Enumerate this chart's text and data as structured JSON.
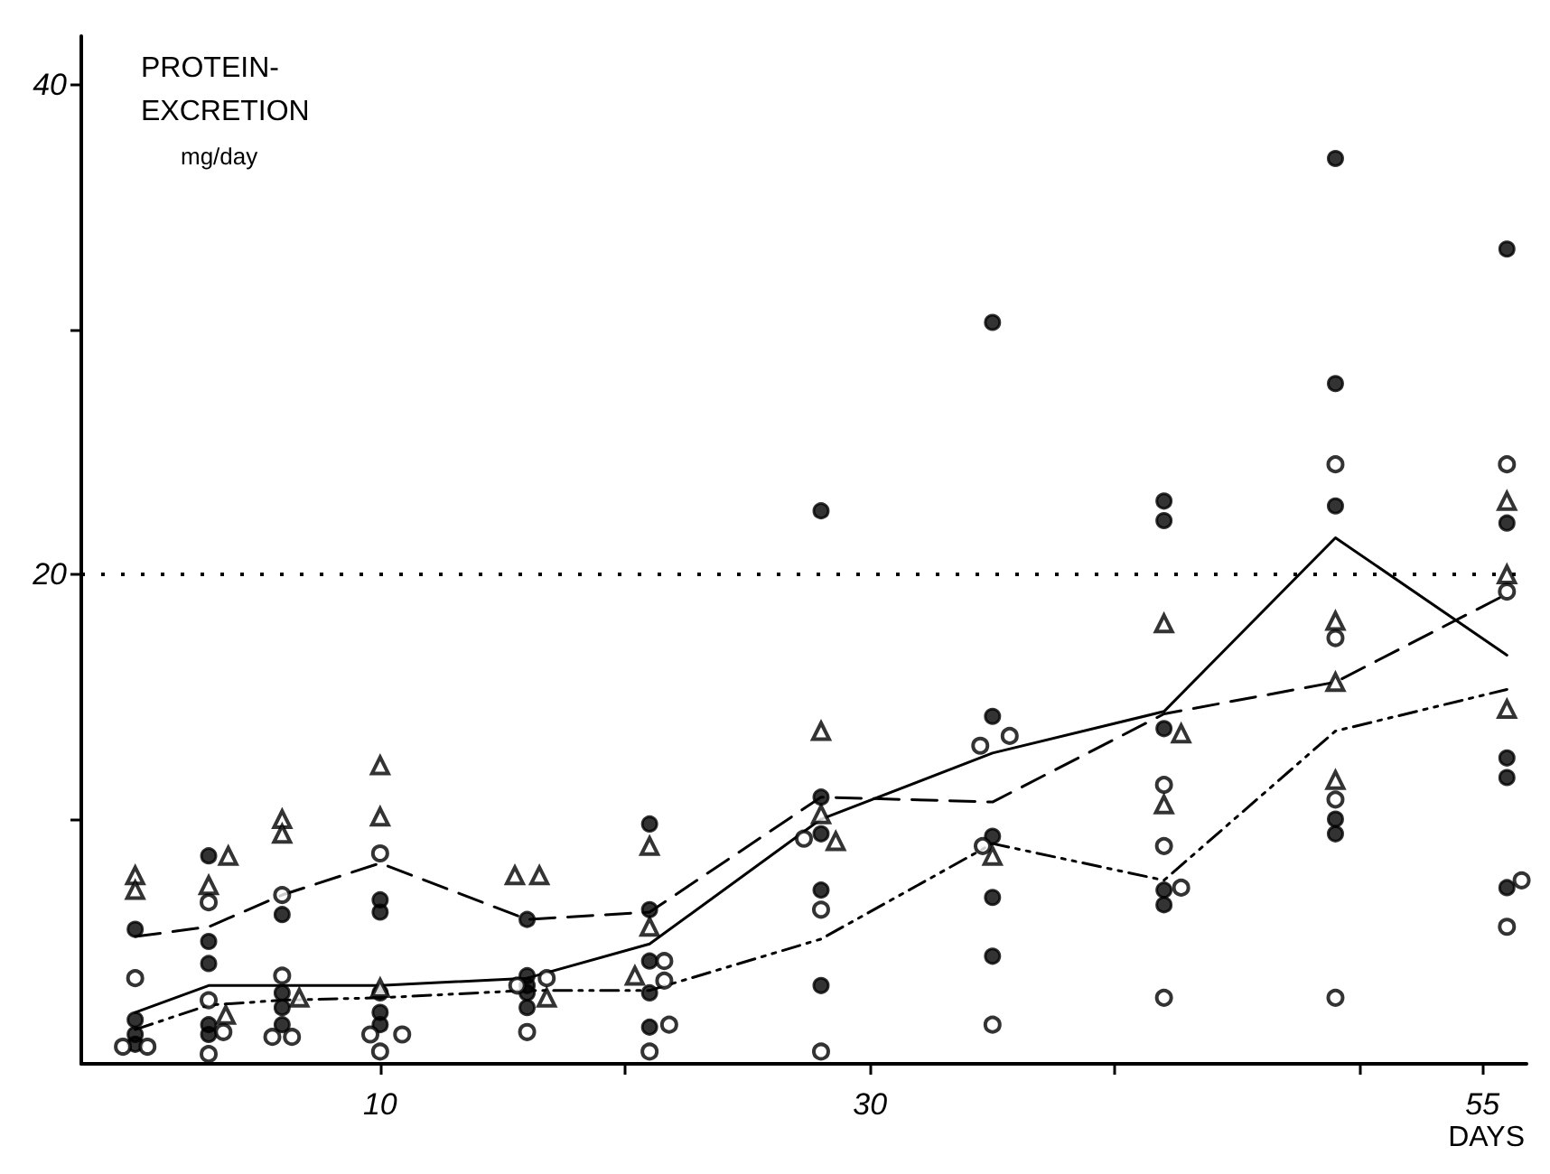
{
  "chart_data": {
    "type": "scatter",
    "ylabel": "PROTEIN-\nEXCRETION\nmg/day",
    "xlabel": "DAYS",
    "xlim": [
      -2.2,
      56.8
    ],
    "ylim": [
      0,
      42
    ],
    "xticks": [
      10,
      {
        "value": 20,
        "label": null
      },
      30,
      {
        "value": 40,
        "label": null
      },
      {
        "value": 50,
        "label": null
      },
      55
    ],
    "yticks": [
      {
        "value": 10,
        "label": null
      },
      20,
      {
        "value": 30,
        "label": null
      },
      40
    ],
    "grid": false,
    "ref_lines": [
      {
        "axis": "y",
        "value": 20,
        "line_style": "dotted",
        "color": "#000000"
      }
    ],
    "series": [
      {
        "marker": "circle",
        "color": "#000000",
        "x": [
          0,
          0,
          0,
          0,
          3,
          3,
          3,
          3,
          3,
          6,
          6,
          6,
          6,
          10,
          10,
          10,
          10,
          10,
          16,
          16,
          16,
          16,
          16,
          21,
          21,
          21,
          21,
          21,
          28,
          28,
          28,
          28,
          28,
          35,
          35,
          35,
          35,
          35,
          42,
          42,
          42,
          42,
          42,
          49,
          49,
          49,
          49,
          49,
          56,
          56,
          56,
          56,
          56
        ],
        "values": [
          5.5,
          1.8,
          1.2,
          0.8,
          8.5,
          5.0,
          4.1,
          1.6,
          1.2,
          6.1,
          2.9,
          2.3,
          1.6,
          6.7,
          6.2,
          2.9,
          2.1,
          1.6,
          5.9,
          3.6,
          3.2,
          2.9,
          2.3,
          9.8,
          6.3,
          4.2,
          2.9,
          1.5,
          22.6,
          10.9,
          9.4,
          7.1,
          3.2,
          30.3,
          14.2,
          9.3,
          6.8,
          4.4,
          23.0,
          22.2,
          13.7,
          7.1,
          6.5,
          37.0,
          27.8,
          22.8,
          10.0,
          9.4,
          33.3,
          22.1,
          12.5,
          11.7,
          7.2
        ]
      },
      {
        "marker": "open circle",
        "color": "#000000",
        "x": [
          0,
          -0.5,
          0.5,
          3,
          3,
          3.6,
          3,
          6,
          6,
          5.6,
          6.4,
          10,
          9.6,
          10.9,
          10,
          15.6,
          16.8,
          16,
          21.6,
          21.6,
          21.8,
          21,
          27.3,
          28,
          28,
          34.5,
          35.7,
          34.6,
          35,
          42,
          42,
          42.7,
          42,
          49,
          49,
          49,
          49,
          56,
          56,
          56.6,
          56
        ],
        "values": [
          3.5,
          0.7,
          0.7,
          6.6,
          2.6,
          1.3,
          0.4,
          6.9,
          3.6,
          1.1,
          1.1,
          8.6,
          1.2,
          1.2,
          0.5,
          3.2,
          3.5,
          1.3,
          4.2,
          3.4,
          1.6,
          0.5,
          9.2,
          6.3,
          0.5,
          13.0,
          13.4,
          8.9,
          1.6,
          11.4,
          8.9,
          7.2,
          2.7,
          24.5,
          17.4,
          10.8,
          2.7,
          24.5,
          19.3,
          7.5,
          5.6
        ]
      },
      {
        "marker": "triangle",
        "color": "#000000",
        "x": [
          0,
          0,
          3.8,
          3,
          3.7,
          6,
          6,
          6.7,
          10,
          10,
          10,
          15.5,
          16.5,
          16.8,
          21,
          21,
          20.4,
          28,
          28,
          28.6,
          35,
          42,
          42.7,
          42,
          49,
          49,
          49,
          56,
          56,
          56
        ],
        "values": [
          7.7,
          7.1,
          8.5,
          7.3,
          2.0,
          10.0,
          9.4,
          2.7,
          12.2,
          10.1,
          3.1,
          7.7,
          7.7,
          2.7,
          8.9,
          5.6,
          3.6,
          13.6,
          10.2,
          9.1,
          8.5,
          18.0,
          13.5,
          10.6,
          18.1,
          15.6,
          11.6,
          23.0,
          20.0,
          14.5
        ]
      },
      {
        "type": "line",
        "marker": "none",
        "line_style": "dashed",
        "color": "#000000",
        "x": [
          0,
          3,
          6,
          10,
          16,
          21,
          28,
          35,
          42,
          49,
          56
        ],
        "values": [
          5.2,
          5.6,
          6.9,
          8.2,
          5.9,
          6.2,
          10.9,
          10.7,
          14.3,
          15.6,
          19.2
        ]
      },
      {
        "type": "line",
        "marker": "none",
        "line_style": "solid",
        "color": "#000000",
        "x": [
          0,
          3,
          6,
          10,
          16,
          21,
          28,
          35,
          42,
          49,
          56
        ],
        "values": [
          2.1,
          3.2,
          3.2,
          3.2,
          3.5,
          4.9,
          10.0,
          12.7,
          14.4,
          21.5,
          16.7
        ]
      },
      {
        "type": "line",
        "marker": "none",
        "line_style": "dashdot",
        "color": "#000000",
        "x": [
          0,
          3,
          6,
          10,
          16,
          21,
          28,
          35,
          42,
          49,
          56
        ],
        "values": [
          1.4,
          2.4,
          2.6,
          2.7,
          3.0,
          3.0,
          5.1,
          9.0,
          7.5,
          13.6,
          15.3
        ]
      }
    ]
  }
}
